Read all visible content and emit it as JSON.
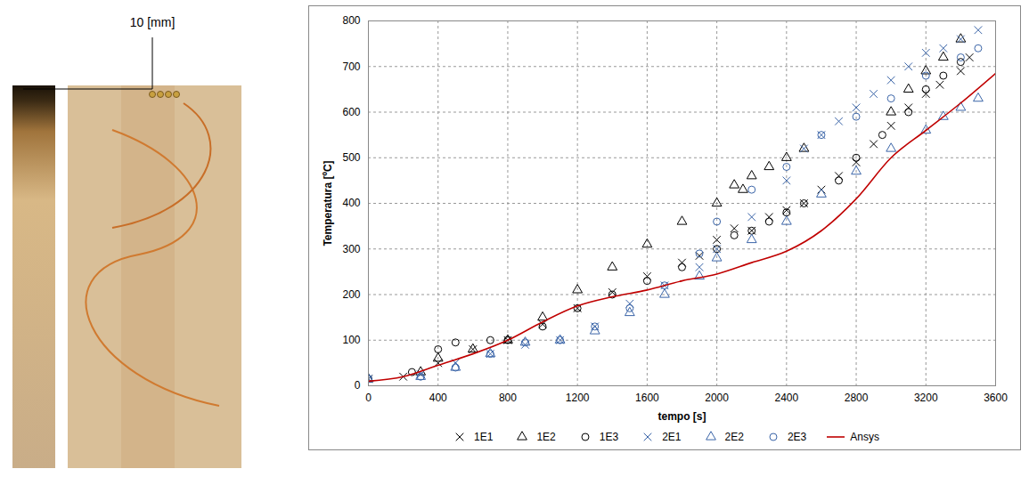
{
  "chart_data": {
    "type": "scatter",
    "annotation": "10 [mm]",
    "x_label": "tempo [s]",
    "y_label": "Temperatura [ºC]",
    "xlim": [
      0,
      3600
    ],
    "xticks": [
      0,
      400,
      800,
      1200,
      1600,
      2000,
      2400,
      2800,
      3200,
      3600
    ],
    "ylim": [
      0,
      800
    ],
    "yticks": [
      0,
      100,
      200,
      300,
      400,
      500,
      600,
      700,
      800
    ],
    "grid": true,
    "legend": "bottom",
    "series": [
      {
        "name": "1E1",
        "type": "scatter",
        "marker": "times",
        "color": "#000000",
        "x": [
          0,
          200,
          400,
          600,
          800,
          1000,
          1200,
          1400,
          1600,
          1800,
          1900,
          2000,
          2100,
          2200,
          2300,
          2400,
          2500,
          2600,
          2700,
          2800,
          2900,
          3000,
          3100,
          3200,
          3280,
          3400,
          3450
        ],
        "values": [
          15,
          20,
          50,
          80,
          100,
          135,
          170,
          205,
          240,
          270,
          285,
          320,
          345,
          340,
          370,
          385,
          400,
          430,
          460,
          490,
          530,
          570,
          610,
          640,
          660,
          690,
          720
        ]
      },
      {
        "name": "1E2",
        "type": "scatter",
        "marker": "triangle",
        "color": "#000000",
        "x": [
          0,
          300,
          400,
          600,
          800,
          1000,
          1200,
          1400,
          1600,
          1800,
          2000,
          2100,
          2150,
          2200,
          2300,
          2400,
          2500,
          3000,
          3100,
          3200,
          3300,
          3400
        ],
        "values": [
          15,
          30,
          60,
          80,
          100,
          150,
          210,
          260,
          310,
          360,
          400,
          440,
          430,
          460,
          480,
          500,
          520,
          600,
          650,
          690,
          720,
          760
        ]
      },
      {
        "name": "1E3",
        "type": "scatter",
        "marker": "circle",
        "color": "#000000",
        "x": [
          0,
          250,
          400,
          500,
          700,
          800,
          1000,
          1200,
          1400,
          1600,
          1800,
          2000,
          2100,
          2200,
          2300,
          2400,
          2500,
          2700,
          2800,
          2950,
          3100,
          3200,
          3300,
          3400
        ],
        "values": [
          15,
          30,
          80,
          95,
          100,
          100,
          130,
          170,
          200,
          230,
          260,
          300,
          330,
          340,
          360,
          380,
          400,
          450,
          500,
          550,
          600,
          650,
          680,
          710
        ]
      },
      {
        "name": "2E1",
        "type": "scatter",
        "marker": "times",
        "color": "#3b65a8",
        "x": [
          0,
          300,
          500,
          700,
          900,
          1100,
          1300,
          1500,
          1700,
          1900,
          2000,
          2200,
          2400,
          2500,
          2600,
          2700,
          2800,
          2900,
          3000,
          3100,
          3200,
          3300,
          3400,
          3500
        ],
        "values": [
          15,
          25,
          50,
          70,
          90,
          100,
          130,
          180,
          220,
          260,
          300,
          370,
          450,
          520,
          550,
          580,
          610,
          640,
          670,
          700,
          730,
          740,
          760,
          780
        ]
      },
      {
        "name": "2E2",
        "type": "scatter",
        "marker": "triangle",
        "color": "#3b65a8",
        "x": [
          0,
          300,
          500,
          700,
          900,
          1100,
          1300,
          1500,
          1700,
          1900,
          2000,
          2200,
          2400,
          2600,
          2800,
          3000,
          3200,
          3300,
          3400,
          3500
        ],
        "values": [
          15,
          20,
          40,
          70,
          95,
          100,
          120,
          160,
          200,
          240,
          280,
          320,
          360,
          420,
          470,
          520,
          560,
          590,
          610,
          630
        ]
      },
      {
        "name": "2E3",
        "type": "scatter",
        "marker": "circle",
        "color": "#3b65a8",
        "x": [
          0,
          300,
          500,
          700,
          900,
          1100,
          1300,
          1500,
          1700,
          1900,
          2000,
          2200,
          2400,
          2600,
          2800,
          3000,
          3200,
          3400,
          3500
        ],
        "values": [
          15,
          20,
          40,
          70,
          95,
          100,
          130,
          170,
          220,
          290,
          360,
          430,
          480,
          550,
          590,
          630,
          680,
          720,
          740
        ]
      },
      {
        "name": "Ansys",
        "type": "line",
        "line_style": "solid",
        "color": "#c00000",
        "x": [
          0,
          200,
          400,
          600,
          800,
          1000,
          1200,
          1400,
          1600,
          1800,
          2000,
          2200,
          2400,
          2600,
          2800,
          3000,
          3200,
          3400,
          3600
        ],
        "values": [
          10,
          20,
          45,
          70,
          100,
          140,
          175,
          195,
          210,
          230,
          245,
          270,
          295,
          340,
          410,
          500,
          560,
          620,
          685
        ]
      }
    ]
  }
}
